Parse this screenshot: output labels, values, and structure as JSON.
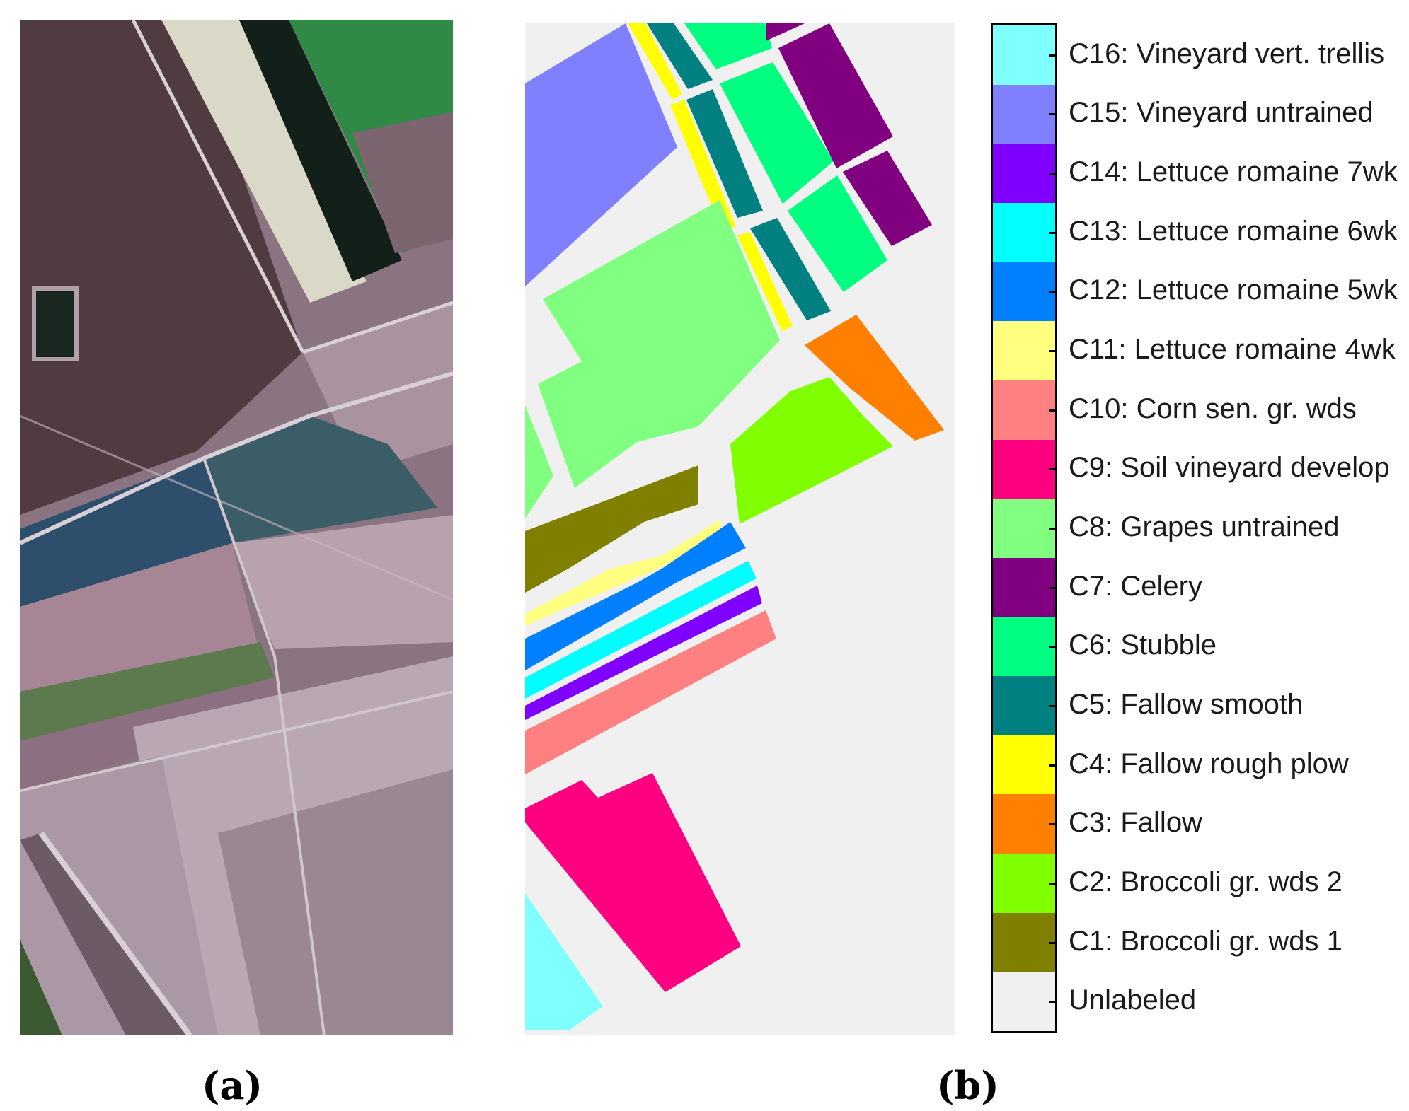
{
  "captions": {
    "a": "(a)",
    "b": "(b)"
  },
  "panel_a": {
    "kind": "false-color aerial image"
  },
  "legend": {
    "items": [
      {
        "label": "C16: Vineyard vert. trellis",
        "color": "#80ffff"
      },
      {
        "label": "C15: Vineyard untrained",
        "color": "#8080ff"
      },
      {
        "label": "C14: Lettuce romaine 7wk",
        "color": "#8000ff"
      },
      {
        "label": "C13: Lettuce romaine 6wk",
        "color": "#00ffff"
      },
      {
        "label": "C12: Lettuce romaine 5wk",
        "color": "#0080ff"
      },
      {
        "label": "C11: Lettuce romaine 4wk",
        "color": "#ffff80"
      },
      {
        "label": "C10: Corn sen. gr. wds",
        "color": "#ff8080"
      },
      {
        "label": "C9: Soil vineyard develop",
        "color": "#ff0080"
      },
      {
        "label": "C8: Grapes untrained",
        "color": "#80ff80"
      },
      {
        "label": "C7: Celery",
        "color": "#800080"
      },
      {
        "label": "C6: Stubble",
        "color": "#00ff80"
      },
      {
        "label": "C5: Fallow smooth",
        "color": "#008080"
      },
      {
        "label": "C4: Fallow rough plow",
        "color": "#ffff00"
      },
      {
        "label": "C3: Fallow",
        "color": "#ff8000"
      },
      {
        "label": "C2: Broccoli gr. wds 2",
        "color": "#80ff00"
      },
      {
        "label": "C1: Broccoli gr. wds 1",
        "color": "#808000"
      },
      {
        "label": "Unlabeled",
        "color": "#f0f0f0"
      }
    ]
  }
}
